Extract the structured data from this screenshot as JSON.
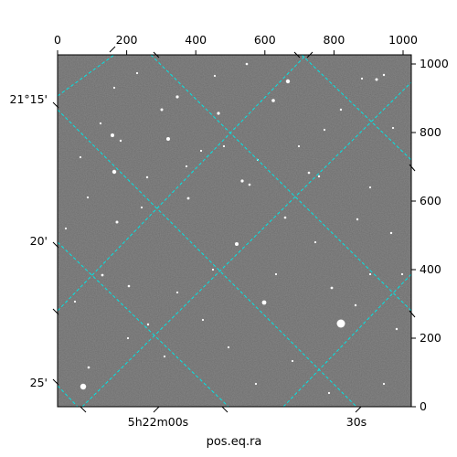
{
  "top_ticks": [
    "0",
    "200",
    "400",
    "600",
    "800",
    "1000"
  ],
  "right_ticks": [
    "0",
    "200",
    "400",
    "600",
    "800",
    "1000"
  ],
  "left_ticks": [
    "21°15'",
    "20'",
    "25'"
  ],
  "bottom_ticks_ra": [
    "5h22m00s",
    "30s"
  ],
  "bottom_axis_label": "pos.eq.ra",
  "colors": {
    "grid": "#00e5e5",
    "image_background": "#6c6c6c",
    "frame": "#000000"
  }
}
